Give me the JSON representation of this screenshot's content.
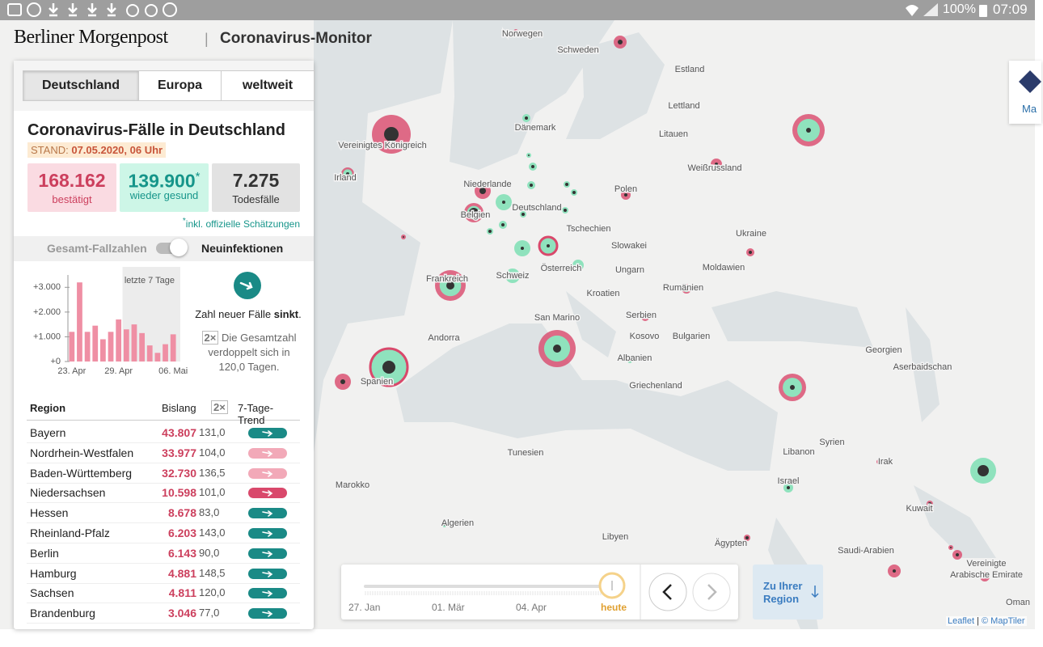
{
  "status_bar": {
    "battery": "100%",
    "time": "07:09"
  },
  "header": {
    "brand": "Berliner Morgenpost",
    "separator": "|",
    "title": "Coronavirus-Monitor"
  },
  "tabs": [
    "Deutschland",
    "Europa",
    "weltweit"
  ],
  "panel": {
    "title": "Coronavirus-Fälle in Deutschland",
    "stand_label": "STAND:",
    "stand": "07.05.2020, 06 Uhr",
    "stats": [
      {
        "value": "168.162",
        "label": "bestätigt"
      },
      {
        "value": "139.900",
        "mark": "*",
        "label": "wieder gesund"
      },
      {
        "value": "7.275",
        "label": "Todesfälle"
      }
    ],
    "footnote_mark": "*",
    "footnote": "inkl. offizielle Schätzungen",
    "toggle": {
      "left": "Gesamt-Fallzahlen",
      "right": "Neuinfektionen"
    }
  },
  "chart_data": {
    "type": "bar",
    "annotation": "letzte 7 Tage",
    "color": "#ef8fa4",
    "categories": [
      "23. Apr",
      null,
      null,
      null,
      null,
      null,
      "29. Apr",
      null,
      null,
      null,
      null,
      null,
      null,
      "06. Mai"
    ],
    "values": [
      1200,
      3200,
      1200,
      1450,
      900,
      1200,
      1700,
      1300,
      1500,
      1150,
      650,
      350,
      700,
      1100
    ],
    "ylim": [
      0,
      3500
    ],
    "yticks": [
      {
        "value": 0,
        "label": "+0"
      },
      {
        "value": 1000,
        "label": "+1.000"
      },
      {
        "value": 2000,
        "label": "+2.000"
      },
      {
        "value": 3000,
        "label": "+3.000"
      }
    ],
    "grid": true
  },
  "trend": {
    "text": "Zahl neuer Fälle",
    "emphasis": "sinkt",
    "end": ".",
    "badge": "2×",
    "doubling": "Die Gesamtzahl verdoppelt sich in 120,0 Tagen."
  },
  "table": {
    "headers": [
      "Region",
      "Bislang",
      "2×",
      "7-Tage-Trend"
    ],
    "rows": [
      {
        "region": "Bayern",
        "cases": "43.807",
        "doubling": "131,0",
        "trend_color": "#1a8a86"
      },
      {
        "region": "Nordrhein-Westfalen",
        "cases": "33.977",
        "doubling": "104,0",
        "trend_color": "#f2a9b8"
      },
      {
        "region": "Baden-Württemberg",
        "cases": "32.730",
        "doubling": "136,5",
        "trend_color": "#f2a9b8"
      },
      {
        "region": "Niedersachsen",
        "cases": "10.598",
        "doubling": "101,0",
        "trend_color": "#d9486b"
      },
      {
        "region": "Hessen",
        "cases": "8.678",
        "doubling": "83,0",
        "trend_color": "#1a8a86"
      },
      {
        "region": "Rheinland-Pfalz",
        "cases": "6.203",
        "doubling": "143,0",
        "trend_color": "#1a8a86"
      },
      {
        "region": "Berlin",
        "cases": "6.143",
        "doubling": "90,0",
        "trend_color": "#1a8a86"
      },
      {
        "region": "Hamburg",
        "cases": "4.881",
        "doubling": "148,5",
        "trend_color": "#1a8a86"
      },
      {
        "region": "Sachsen",
        "cases": "4.811",
        "doubling": "120,0",
        "trend_color": "#1a8a86"
      },
      {
        "region": "Brandenburg",
        "cases": "3.046",
        "doubling": "77,0",
        "trend_color": "#1a8a86"
      }
    ]
  },
  "map": {
    "labels": [
      "Norwegen",
      "Schweden",
      "Estland",
      "Lettland",
      "Dänemark",
      "Litauen",
      "Vereinigtes Königreich",
      "Weißrussland",
      "Irland",
      "Niederlande",
      "Polen",
      "Deutschland",
      "Belgien",
      "Tschechien",
      "Ukraine",
      "Slowakei",
      "Frankreich",
      "Österreich",
      "Ungarn",
      "Moldawien",
      "Schweiz",
      "Kroatien",
      "Rumänien",
      "San Marino",
      "Serbien",
      "Andorra",
      "Kosovo",
      "Bulgarien",
      "Georgien",
      "Albanien",
      "Aserbaidschan",
      "Spanien",
      "Griechenland",
      "Tunesien",
      "Syrien",
      "Libanon",
      "Irak",
      "Marokko",
      "Israel",
      "Kuwait",
      "Algerien",
      "Libyen",
      "Ägypten",
      "Saudi-Arabien",
      "Vereinigte",
      "Arabische Emirate",
      "Oman"
    ]
  },
  "timeline": {
    "labels": [
      "27. Jan",
      "01. Mär",
      "04. Apr",
      "heute"
    ]
  },
  "region_button": {
    "line1": "Zu Ihrer",
    "line2": "Region"
  },
  "attribution": {
    "leaflet": "Leaflet",
    "separator": "|",
    "maptiler": "© MapTiler"
  },
  "logo_partial": "Ma"
}
